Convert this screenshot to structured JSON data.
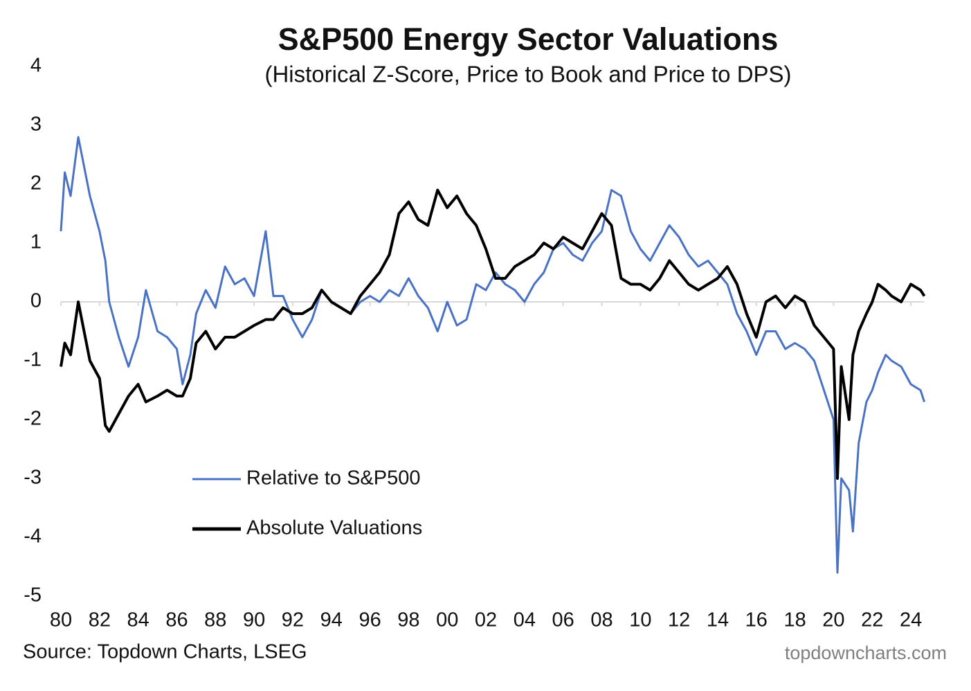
{
  "chart_data": {
    "type": "line",
    "title": "S&P500 Energy Sector Valuations",
    "subtitle": "(Historical Z-Score, Price to Book and Price to DPS)",
    "source": "Source: Topdown Charts, LSEG",
    "watermark": "topdowncharts.com",
    "legend": "lower left",
    "x": [
      1980,
      1980.2,
      1980.5,
      1980.9,
      1981.5,
      1982,
      1982.3,
      1982.5,
      1983,
      1983.5,
      1984,
      1984.4,
      1985,
      1985.5,
      1986,
      1986.3,
      1986.7,
      1987,
      1987.5,
      1988,
      1988.5,
      1989,
      1989.5,
      1990,
      1990.6,
      1991,
      1991.5,
      1992,
      1992.5,
      1993,
      1993.5,
      1994,
      1994.5,
      1995,
      1995.5,
      1996,
      1996.5,
      1997,
      1997.5,
      1998,
      1998.5,
      1999,
      1999.5,
      2000,
      2000.5,
      2001,
      2001.5,
      2002,
      2002.5,
      2003,
      2003.5,
      2004,
      2004.5,
      2005,
      2005.5,
      2006,
      2006.5,
      2007,
      2007.5,
      2008,
      2008.5,
      2009,
      2009.5,
      2010,
      2010.5,
      2011,
      2011.5,
      2012,
      2012.5,
      2013,
      2013.5,
      2014,
      2014.5,
      2015,
      2015.5,
      2016,
      2016.5,
      2017,
      2017.5,
      2018,
      2018.5,
      2019,
      2019.5,
      2020,
      2020.2,
      2020.4,
      2020.8,
      2021,
      2021.3,
      2021.7,
      2022,
      2022.3,
      2022.7,
      2023,
      2023.5,
      2024,
      2024.5,
      2024.7
    ],
    "series": [
      {
        "name": "Relative to S&P500",
        "color": "#4a72c4",
        "values": [
          1.2,
          2.2,
          1.8,
          2.8,
          1.8,
          1.2,
          0.7,
          0.0,
          -0.6,
          -1.1,
          -0.6,
          0.2,
          -0.5,
          -0.6,
          -0.8,
          -1.4,
          -0.9,
          -0.2,
          0.2,
          -0.1,
          0.6,
          0.3,
          0.4,
          0.1,
          1.2,
          0.1,
          0.1,
          -0.3,
          -0.6,
          -0.3,
          0.2,
          0.0,
          -0.1,
          -0.2,
          0.0,
          0.1,
          0.0,
          0.2,
          0.1,
          0.4,
          0.1,
          -0.1,
          -0.5,
          0.0,
          -0.4,
          -0.3,
          0.3,
          0.2,
          0.5,
          0.3,
          0.2,
          0.0,
          0.3,
          0.5,
          0.9,
          1.0,
          0.8,
          0.7,
          1.0,
          1.2,
          1.9,
          1.8,
          1.2,
          0.9,
          0.7,
          1.0,
          1.3,
          1.1,
          0.8,
          0.6,
          0.7,
          0.5,
          0.3,
          -0.2,
          -0.5,
          -0.9,
          -0.5,
          -0.5,
          -0.8,
          -0.7,
          -0.8,
          -1.0,
          -1.5,
          -2.0,
          -4.6,
          -3.0,
          -3.2,
          -3.9,
          -2.4,
          -1.7,
          -1.5,
          -1.2,
          -0.9,
          -1.0,
          -1.1,
          -1.4,
          -1.5,
          -1.7
        ]
      },
      {
        "name": "Absolute Valuations",
        "color": "#000000",
        "values": [
          -1.1,
          -0.7,
          -0.9,
          0.0,
          -1.0,
          -1.3,
          -2.1,
          -2.2,
          -1.9,
          -1.6,
          -1.4,
          -1.7,
          -1.6,
          -1.5,
          -1.6,
          -1.6,
          -1.3,
          -0.7,
          -0.5,
          -0.8,
          -0.6,
          -0.6,
          -0.5,
          -0.4,
          -0.3,
          -0.3,
          -0.1,
          -0.2,
          -0.2,
          -0.1,
          0.2,
          0.0,
          -0.1,
          -0.2,
          0.1,
          0.3,
          0.5,
          0.8,
          1.5,
          1.7,
          1.4,
          1.3,
          1.9,
          1.6,
          1.8,
          1.5,
          1.3,
          0.9,
          0.4,
          0.4,
          0.6,
          0.7,
          0.8,
          1.0,
          0.9,
          1.1,
          1.0,
          0.9,
          1.2,
          1.5,
          1.3,
          0.4,
          0.3,
          0.3,
          0.2,
          0.4,
          0.7,
          0.5,
          0.3,
          0.2,
          0.3,
          0.4,
          0.6,
          0.3,
          -0.2,
          -0.6,
          0.0,
          0.1,
          -0.1,
          0.1,
          0.0,
          -0.4,
          -0.6,
          -0.8,
          -3.0,
          -1.1,
          -2.0,
          -0.9,
          -0.5,
          -0.2,
          0.0,
          0.3,
          0.2,
          0.1,
          0.0,
          0.3,
          0.2,
          0.1
        ]
      }
    ],
    "xlim": [
      1980,
      2025
    ],
    "xticks": [
      {
        "value": 1980,
        "label": "80"
      },
      {
        "value": 1982,
        "label": "82"
      },
      {
        "value": 1984,
        "label": "84"
      },
      {
        "value": 1986,
        "label": "86"
      },
      {
        "value": 1988,
        "label": "88"
      },
      {
        "value": 1990,
        "label": "90"
      },
      {
        "value": 1992,
        "label": "92"
      },
      {
        "value": 1994,
        "label": "94"
      },
      {
        "value": 1996,
        "label": "96"
      },
      {
        "value": 1998,
        "label": "98"
      },
      {
        "value": 2000,
        "label": "00"
      },
      {
        "value": 2002,
        "label": "02"
      },
      {
        "value": 2004,
        "label": "04"
      },
      {
        "value": 2006,
        "label": "06"
      },
      {
        "value": 2008,
        "label": "08"
      },
      {
        "value": 2010,
        "label": "10"
      },
      {
        "value": 2012,
        "label": "12"
      },
      {
        "value": 2014,
        "label": "14"
      },
      {
        "value": 2016,
        "label": "16"
      },
      {
        "value": 2018,
        "label": "18"
      },
      {
        "value": 2020,
        "label": "20"
      },
      {
        "value": 2022,
        "label": "22"
      },
      {
        "value": 2024,
        "label": "24"
      }
    ],
    "ylim": [
      -5,
      4
    ],
    "yticks": [
      -5,
      -4,
      -3,
      -2,
      -1,
      0,
      1,
      2,
      3,
      4
    ],
    "zero_line": true
  }
}
